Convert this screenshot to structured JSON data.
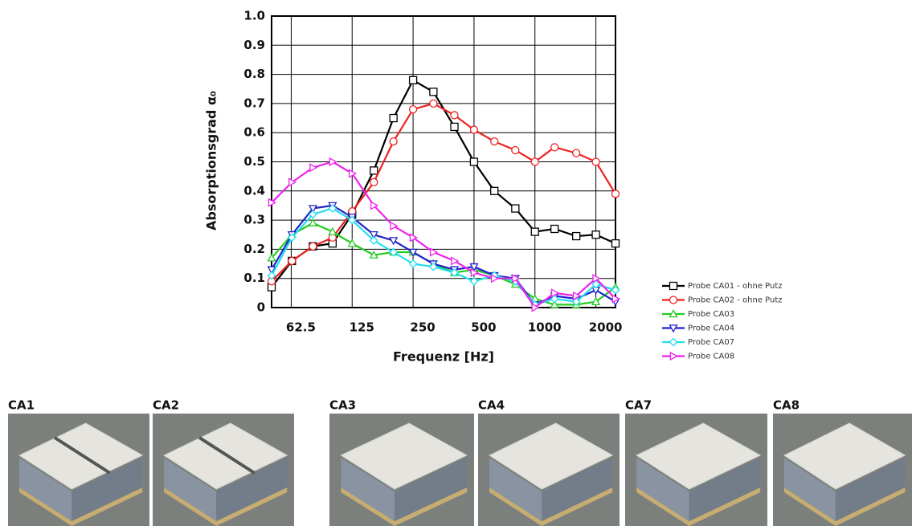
{
  "chart_data": {
    "type": "line",
    "xlabel": "Frequenz [Hz]",
    "ylabel": "Absorptionsgrad α₀",
    "x": [
      50,
      63,
      80,
      100,
      125,
      160,
      200,
      250,
      315,
      400,
      500,
      630,
      800,
      1000,
      1250,
      1600,
      2000,
      2500
    ],
    "xlim": [
      50,
      2500
    ],
    "xscale": "log",
    "xticks": [
      62.5,
      125,
      250,
      500,
      1000,
      2000
    ],
    "ylim": [
      0,
      1
    ],
    "yticks": [
      0,
      0.1,
      0.2,
      0.3,
      0.4,
      0.5,
      0.6,
      0.7,
      0.8,
      0.9,
      {
        "value": 1,
        "label": "1.0"
      }
    ],
    "grid": true,
    "legend": "lower right outside",
    "series": [
      {
        "name": "Probe CA01 - ohne Putz",
        "color": "#000000",
        "marker": "square",
        "values": [
          0.07,
          0.16,
          0.21,
          0.22,
          0.32,
          0.47,
          0.65,
          0.78,
          0.74,
          0.62,
          0.5,
          0.4,
          0.34,
          0.26,
          0.27,
          0.245,
          0.25,
          0.22
        ]
      },
      {
        "name": "Probe CA02 - ohne Putz",
        "color": "#ee2222",
        "marker": "circle",
        "values": [
          0.09,
          0.16,
          0.21,
          0.24,
          0.33,
          0.43,
          0.57,
          0.68,
          0.7,
          0.66,
          0.61,
          0.57,
          0.54,
          0.5,
          0.55,
          0.53,
          0.5,
          0.39
        ]
      },
      {
        "name": "Probe CA03",
        "color": "#22cc22",
        "marker": "triangle-up",
        "values": [
          0.17,
          0.25,
          0.29,
          0.26,
          0.22,
          0.18,
          0.19,
          0.19,
          0.15,
          0.12,
          0.13,
          0.11,
          0.08,
          0.03,
          0.01,
          0.01,
          0.02,
          0.07
        ]
      },
      {
        "name": "Probe CA04",
        "color": "#2222cc",
        "marker": "triangle-down",
        "values": [
          0.13,
          0.25,
          0.34,
          0.35,
          0.31,
          0.25,
          0.23,
          0.19,
          0.15,
          0.13,
          0.14,
          0.11,
          0.1,
          0.01,
          0.04,
          0.03,
          0.06,
          0.02
        ]
      },
      {
        "name": "Probe CA07",
        "color": "#22ddee",
        "marker": "diamond",
        "values": [
          0.11,
          0.24,
          0.32,
          0.34,
          0.3,
          0.23,
          0.19,
          0.15,
          0.14,
          0.12,
          0.09,
          0.11,
          0.09,
          0.01,
          0.03,
          0.02,
          0.08,
          0.06
        ]
      },
      {
        "name": "Probe CA08",
        "color": "#ee22ee",
        "marker": "triangle-right",
        "values": [
          0.36,
          0.43,
          0.48,
          0.5,
          0.46,
          0.35,
          0.28,
          0.24,
          0.19,
          0.16,
          0.12,
          0.1,
          0.1,
          0.0,
          0.05,
          0.04,
          0.1,
          0.03
        ]
      }
    ]
  },
  "photos": [
    {
      "label": "CA1"
    },
    {
      "label": "CA2"
    },
    {
      "label": "CA3"
    },
    {
      "label": "CA4"
    },
    {
      "label": "CA7"
    },
    {
      "label": "CA8"
    }
  ]
}
